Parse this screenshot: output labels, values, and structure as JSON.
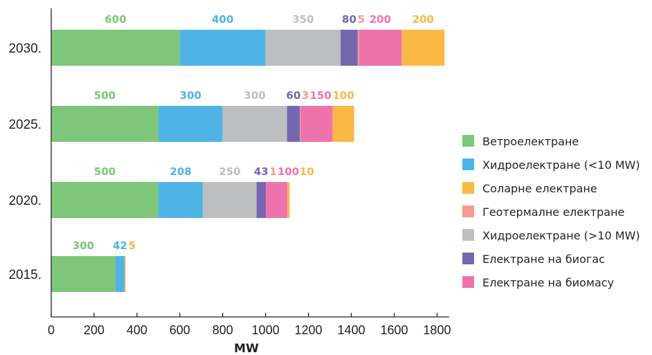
{
  "chart_data": {
    "type": "bar",
    "orientation": "horizontal",
    "stacked": true,
    "xlabel": "MW",
    "xlim": [
      0,
      1850
    ],
    "xticks": [
      0,
      200,
      400,
      600,
      800,
      1000,
      1200,
      1400,
      1600,
      1800
    ],
    "categories": [
      "2030.",
      "2025.",
      "2020.",
      "2015."
    ],
    "stack_order": [
      "Ветроелектране",
      "Хидроелектране (<10 MW)",
      "Хидроелектране (>10 MW)",
      "Електране на биогас",
      "Геотермалне електране",
      "Електране на биомасу",
      "Соларне електране"
    ],
    "series": [
      {
        "name": "Ветроелектране",
        "color": "#7dc67a",
        "values": [
          600,
          500,
          500,
          300
        ]
      },
      {
        "name": "Хидроелектране (<10 MW)",
        "color": "#4fb3e6",
        "values": [
          400,
          300,
          208,
          42
        ]
      },
      {
        "name": "Хидроелектране (>10 MW)",
        "color": "#bcbec0",
        "values": [
          350,
          300,
          250,
          0
        ]
      },
      {
        "name": "Електране на биогас",
        "color": "#7566b0",
        "values": [
          80,
          60,
          43,
          0
        ]
      },
      {
        "name": "Геотермалне електране",
        "color": "#f59a8c",
        "values": [
          5,
          3,
          1,
          0
        ]
      },
      {
        "name": "Електране на биомасу",
        "color": "#ee73ad",
        "values": [
          200,
          150,
          100,
          0
        ]
      },
      {
        "name": "Соларне електране",
        "color": "#fbb844",
        "values": [
          200,
          100,
          10,
          5
        ]
      }
    ],
    "legend": {
      "position": "right",
      "items": [
        "Ветроелектране",
        "Хидроелектране (<10 MW)",
        "Соларне електране",
        "Геотермалне електране",
        "Хидроелектране (>10 MW)",
        "Електране на биогас",
        "Електране на биомасу"
      ]
    },
    "grid": false
  }
}
